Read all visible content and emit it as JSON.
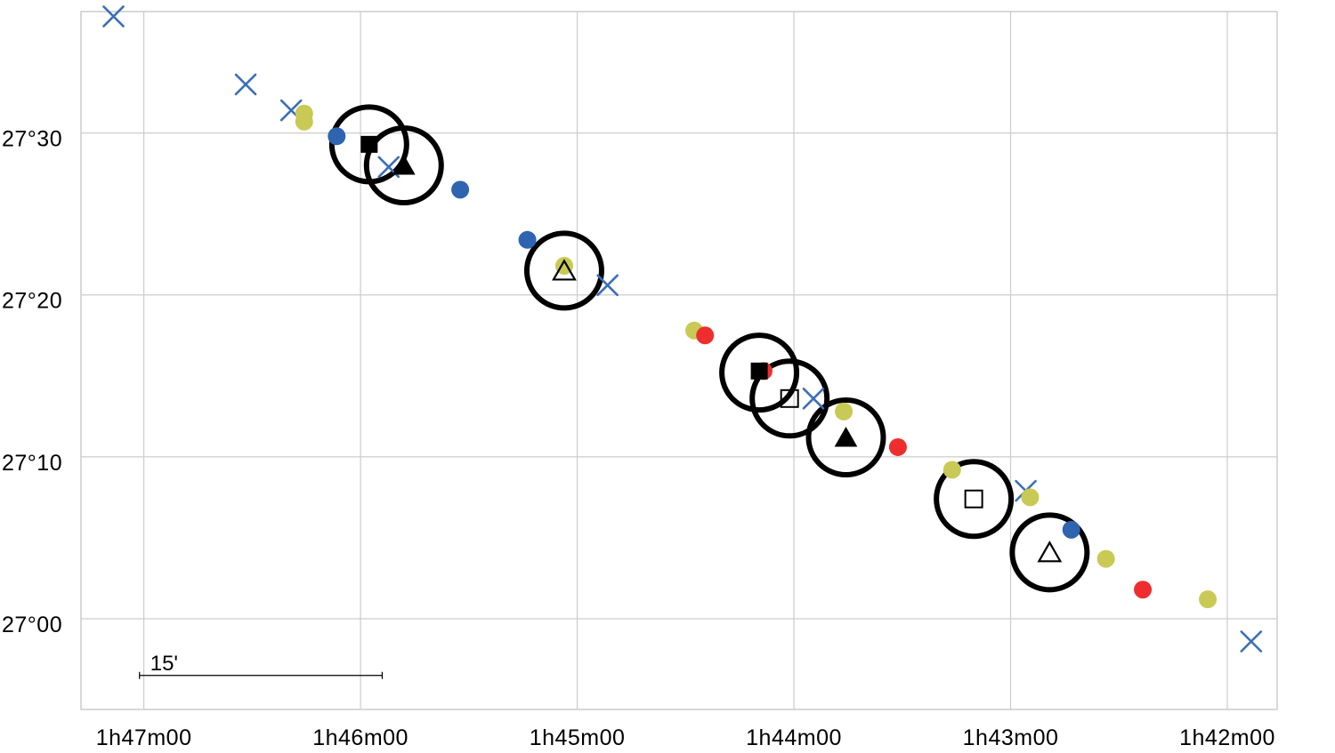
{
  "chart_data": {
    "type": "scatter",
    "title": "",
    "xlabel": "",
    "ylabel": "",
    "x_unit": "RA minutes after 1h40m",
    "y_unit": "Dec arcminutes after 27°00",
    "xlim": [
      7.29,
      1.77
    ],
    "ylim": [
      -5.6,
      37.5
    ],
    "x_direction": "decreasing",
    "grid": true,
    "x_ticks": [
      {
        "value": 7,
        "label": "1h47m00"
      },
      {
        "value": 6,
        "label": "1h46m00"
      },
      {
        "value": 5,
        "label": "1h45m00"
      },
      {
        "value": 4,
        "label": "1h44m00"
      },
      {
        "value": 3,
        "label": "1h43m00"
      },
      {
        "value": 2,
        "label": "1h42m00"
      }
    ],
    "y_ticks": [
      {
        "value": 30,
        "label": "27°30"
      },
      {
        "value": 20,
        "label": "27°20"
      },
      {
        "value": 10,
        "label": "27°10"
      },
      {
        "value": 0,
        "label": "27°00"
      }
    ],
    "scale_bar": {
      "label": "15'",
      "ra_start": 7.02,
      "ra_end": 5.9,
      "dec": -3.5
    },
    "colors": {
      "blue": "#2f64b0",
      "yellow": "#c9c955",
      "red": "#ee2e2e",
      "cross": "#3b6fb6",
      "grid": "#cccccc",
      "ring": "#000000"
    },
    "series": [
      {
        "marker": "cross",
        "color": "#3b6fb6",
        "points": [
          [
            7.14,
            37.2
          ],
          [
            6.53,
            33.0
          ],
          [
            6.32,
            31.4
          ],
          [
            5.87,
            27.9
          ],
          [
            4.86,
            20.6
          ],
          [
            3.91,
            13.6
          ],
          [
            2.93,
            7.9
          ],
          [
            1.89,
            -1.4
          ]
        ]
      },
      {
        "marker": "dot",
        "color": "#c9c955",
        "points": [
          [
            6.26,
            31.2
          ],
          [
            6.26,
            30.7
          ],
          [
            5.06,
            21.8
          ],
          [
            4.46,
            17.8
          ],
          [
            3.77,
            12.8
          ],
          [
            3.27,
            9.2
          ],
          [
            2.91,
            7.5
          ],
          [
            2.56,
            3.7
          ],
          [
            2.09,
            1.2
          ]
        ]
      },
      {
        "marker": "dot",
        "color": "#2f64b0",
        "points": [
          [
            6.11,
            29.8
          ],
          [
            5.54,
            26.5
          ],
          [
            5.23,
            23.4
          ],
          [
            2.72,
            5.5
          ]
        ]
      },
      {
        "marker": "dot",
        "color": "#ee2e2e",
        "points": [
          [
            4.41,
            17.5
          ],
          [
            4.14,
            15.3
          ],
          [
            3.52,
            10.6
          ],
          [
            2.39,
            1.8
          ]
        ]
      },
      {
        "marker": "ring",
        "color": "#000000",
        "points": [
          [
            5.96,
            29.3
          ],
          [
            5.8,
            28.0
          ],
          [
            5.06,
            21.5
          ],
          [
            4.16,
            15.2
          ],
          [
            4.02,
            13.6
          ],
          [
            3.76,
            11.2
          ],
          [
            3.17,
            7.4
          ],
          [
            2.82,
            4.1
          ]
        ]
      },
      {
        "marker": "square-filled",
        "color": "#000000",
        "points": [
          [
            5.96,
            29.3
          ],
          [
            4.16,
            15.3
          ]
        ]
      },
      {
        "marker": "triangle-filled",
        "color": "#000000",
        "points": [
          [
            5.8,
            28.0
          ],
          [
            3.76,
            11.2
          ]
        ]
      },
      {
        "marker": "triangle-open",
        "color": "#000000",
        "points": [
          [
            5.06,
            21.5
          ],
          [
            2.82,
            4.1
          ]
        ]
      },
      {
        "marker": "square-open",
        "color": "#000000",
        "points": [
          [
            4.02,
            13.6
          ],
          [
            3.17,
            7.4
          ]
        ]
      }
    ]
  }
}
